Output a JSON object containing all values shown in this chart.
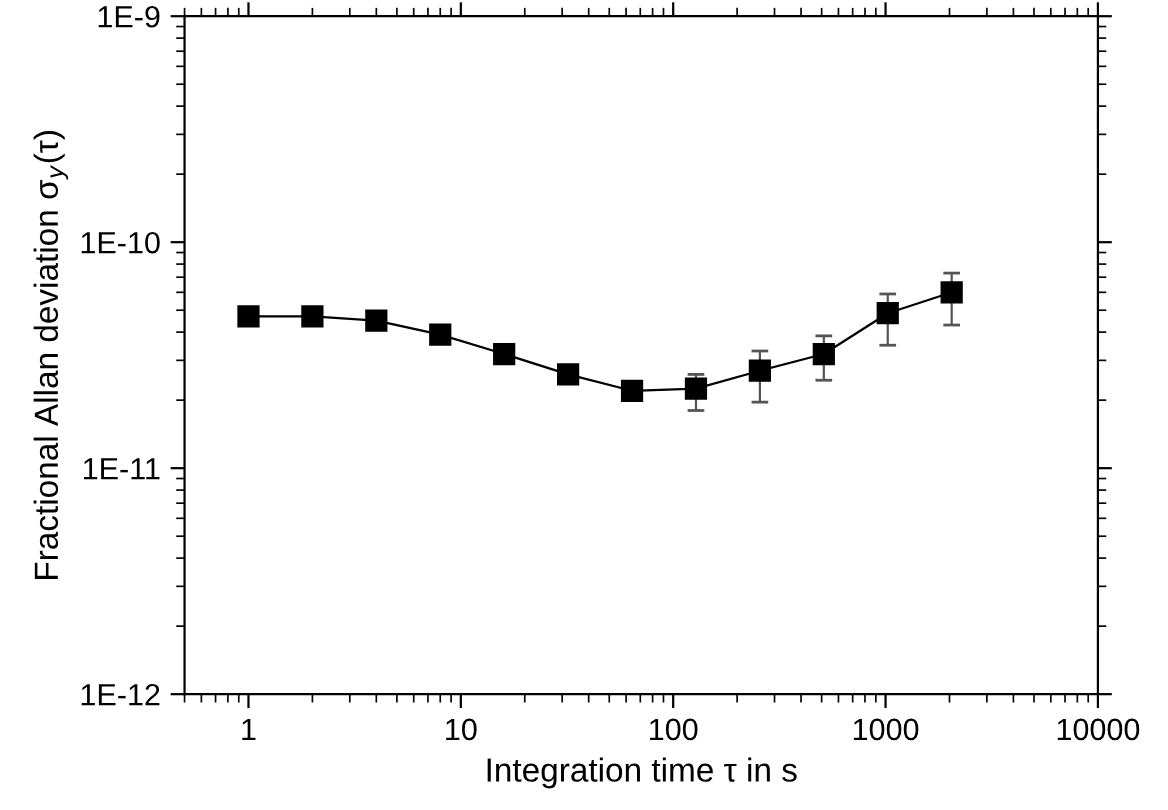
{
  "chart_data": {
    "type": "line",
    "xlabel": "Integration time τ in s",
    "ylabel": "Fractional Allan deviation σ$_{y}$(τ)",
    "log": "xy",
    "marker": "square",
    "line_style": "solid",
    "grid": false,
    "legend": false,
    "xlim": [
      0.5,
      10000
    ],
    "xticks": [
      1,
      10,
      100,
      1000,
      10000
    ],
    "ylim": [
      1e-12,
      1e-09
    ],
    "yticks": [
      {
        "value": 1e-12,
        "label": "1E-12"
      },
      {
        "value": 1e-11,
        "label": "1E-11"
      },
      {
        "value": 1e-10,
        "label": "1E-10"
      },
      {
        "value": 1e-09,
        "label": "1E-9"
      }
    ],
    "series": [
      {
        "color": "#000000",
        "x": [
          1,
          2,
          4,
          8,
          16,
          32,
          64,
          128,
          256,
          512,
          1024,
          2048
        ],
        "values": [
          4.7e-11,
          4.7e-11,
          4.5e-11,
          3.9e-11,
          3.2e-11,
          2.6e-11,
          2.2e-11,
          2.25e-11,
          2.7e-11,
          3.2e-11,
          4.85e-11,
          6e-11
        ],
        "errors": [
          null,
          null,
          null,
          null,
          null,
          null,
          null,
          [
            1.8e-11,
            2.6e-11
          ],
          [
            1.96e-11,
            3.3e-11
          ],
          [
            2.45e-11,
            3.85e-11
          ],
          [
            3.5e-11,
            5.9e-11
          ],
          [
            4.3e-11,
            7.3e-11
          ]
        ]
      }
    ]
  }
}
